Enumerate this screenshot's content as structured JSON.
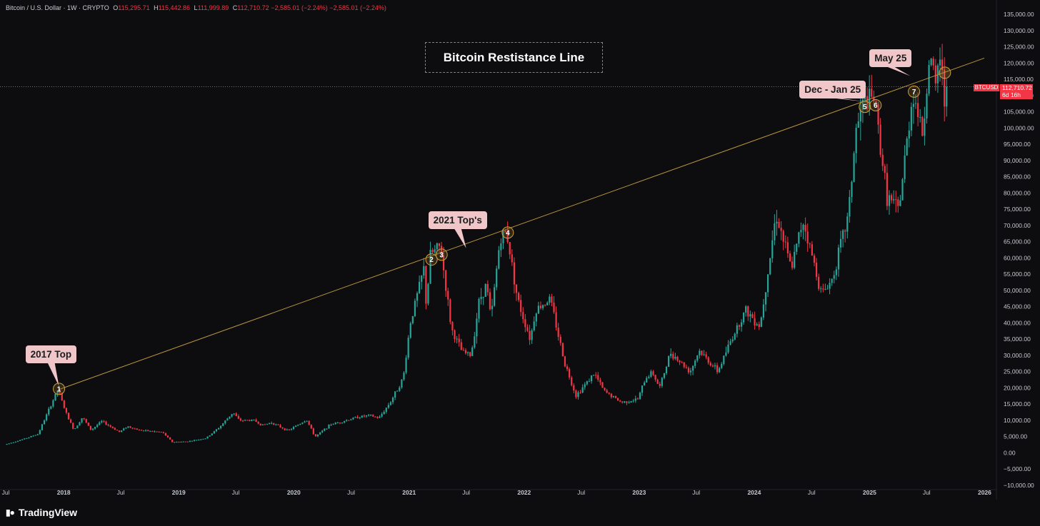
{
  "legend": {
    "symbol": "Bitcoin / U.S. Dollar · 1W · CRYPTO",
    "o_label": "O",
    "o": "115,295.71",
    "h_label": "H",
    "h": "115,442.86",
    "l_label": "L",
    "l": "111,999.89",
    "c_label": "C",
    "c": "112,710.72",
    "change": "−2,585.01 (−2.24%)",
    "change2": "−2,585.01 (−2.24%)"
  },
  "title": "Bitcoin Restistance Line",
  "price_tag": {
    "symbol": "BTCUSD",
    "price": "112,710.72",
    "countdown": "6d 16h"
  },
  "brand": "TradingView",
  "colors": {
    "up": "#26a69a",
    "down": "#f23645",
    "line": "#b8953c",
    "circle": "#d0a03c",
    "callout": "#f0c6c9",
    "current": "#f23645"
  },
  "chart_data": {
    "type": "candlestick",
    "title": "Bitcoin Restistance Line",
    "timeframe": "1W",
    "ylim": [
      -10000,
      135000
    ],
    "y_ticks": [
      135000,
      130000,
      125000,
      120000,
      115000,
      110000,
      105000,
      100000,
      95000,
      90000,
      85000,
      80000,
      75000,
      70000,
      65000,
      60000,
      55000,
      50000,
      45000,
      40000,
      35000,
      30000,
      25000,
      20000,
      15000,
      10000,
      5000,
      0,
      -5000,
      -10000
    ],
    "y_tick_labels": [
      "135,000.00",
      "130,000.00",
      "125,000.00",
      "120,000.00",
      "115,000.00",
      "110,000.00",
      "105,000.00",
      "100,000.00",
      "95,000.00",
      "90,000.00",
      "85,000.00",
      "80,000.00",
      "75,000.00",
      "70,000.00",
      "65,000.00",
      "60,000.00",
      "55,000.00",
      "50,000.00",
      "45,000.00",
      "40,000.00",
      "35,000.00",
      "30,000.00",
      "25,000.00",
      "20,000.00",
      "15,000.00",
      "10,000.00",
      "5,000.00",
      "0.00",
      "−5,000.00",
      "−10,000.00"
    ],
    "x_ticks": [
      {
        "label": "Jul",
        "date": "2017-07-01"
      },
      {
        "label": "2018",
        "date": "2018-01-01"
      },
      {
        "label": "Jul",
        "date": "2018-07-01"
      },
      {
        "label": "2019",
        "date": "2019-01-01"
      },
      {
        "label": "Jul",
        "date": "2019-07-01"
      },
      {
        "label": "2020",
        "date": "2020-01-01"
      },
      {
        "label": "Jul",
        "date": "2020-07-01"
      },
      {
        "label": "2021",
        "date": "2021-01-01"
      },
      {
        "label": "Jul",
        "date": "2021-07-01"
      },
      {
        "label": "2022",
        "date": "2022-01-01"
      },
      {
        "label": "Jul",
        "date": "2022-07-01"
      },
      {
        "label": "2023",
        "date": "2023-01-01"
      },
      {
        "label": "Jul",
        "date": "2023-07-01"
      },
      {
        "label": "2024",
        "date": "2024-01-01"
      },
      {
        "label": "Jul",
        "date": "2024-07-01"
      },
      {
        "label": "2025",
        "date": "2025-01-01"
      },
      {
        "label": "Jul",
        "date": "2025-07-01"
      },
      {
        "label": "2026",
        "date": "2026-01-01"
      }
    ],
    "x_range": [
      "2017-07-01",
      "2025-12-31"
    ],
    "price_path": [
      [
        "2017-07-01",
        2500
      ],
      [
        "2017-09-01",
        4300
      ],
      [
        "2017-10-15",
        5800
      ],
      [
        "2017-12-17",
        19500
      ],
      [
        "2018-01-15",
        11500
      ],
      [
        "2018-02-06",
        7000
      ],
      [
        "2018-03-05",
        11000
      ],
      [
        "2018-04-01",
        7000
      ],
      [
        "2018-05-05",
        9700
      ],
      [
        "2018-07-01",
        6400
      ],
      [
        "2018-07-25",
        8200
      ],
      [
        "2018-09-01",
        7000
      ],
      [
        "2018-11-14",
        6300
      ],
      [
        "2018-12-15",
        3300
      ],
      [
        "2019-02-01",
        3500
      ],
      [
        "2019-04-01",
        4500
      ],
      [
        "2019-05-15",
        8000
      ],
      [
        "2019-06-26",
        12500
      ],
      [
        "2019-07-15",
        10000
      ],
      [
        "2019-09-01",
        10000
      ],
      [
        "2019-09-25",
        8500
      ],
      [
        "2019-10-26",
        9300
      ],
      [
        "2019-12-17",
        6800
      ],
      [
        "2020-02-14",
        10200
      ],
      [
        "2020-03-12",
        4900
      ],
      [
        "2020-05-01",
        8800
      ],
      [
        "2020-06-01",
        9500
      ],
      [
        "2020-07-25",
        11000
      ],
      [
        "2020-09-01",
        11500
      ],
      [
        "2020-10-01",
        10700
      ],
      [
        "2020-11-05",
        15500
      ],
      [
        "2020-12-17",
        23000
      ],
      [
        "2021-01-08",
        40000
      ],
      [
        "2021-02-21",
        57000
      ],
      [
        "2021-02-28",
        45000
      ],
      [
        "2021-03-13",
        61000
      ],
      [
        "2021-04-14",
        63500
      ],
      [
        "2021-05-19",
        38000
      ],
      [
        "2021-06-22",
        31000
      ],
      [
        "2021-07-20",
        30000
      ],
      [
        "2021-08-15",
        47000
      ],
      [
        "2021-09-07",
        52000
      ],
      [
        "2021-09-21",
        41000
      ],
      [
        "2021-10-20",
        66000
      ],
      [
        "2021-11-10",
        68000
      ],
      [
        "2021-12-15",
        47000
      ],
      [
        "2022-01-24",
        35000
      ],
      [
        "2022-02-10",
        44000
      ],
      [
        "2022-03-28",
        47500
      ],
      [
        "2022-05-12",
        28000
      ],
      [
        "2022-06-18",
        17600
      ],
      [
        "2022-08-15",
        24500
      ],
      [
        "2022-09-15",
        19000
      ],
      [
        "2022-11-09",
        15500
      ],
      [
        "2022-12-31",
        16500
      ],
      [
        "2023-01-25",
        23000
      ],
      [
        "2023-02-15",
        25000
      ],
      [
        "2023-03-10",
        20000
      ],
      [
        "2023-04-14",
        31000
      ],
      [
        "2023-06-15",
        25000
      ],
      [
        "2023-07-14",
        31500
      ],
      [
        "2023-09-11",
        25000
      ],
      [
        "2023-10-24",
        35000
      ],
      [
        "2023-12-08",
        44000
      ],
      [
        "2024-01-23",
        39000
      ],
      [
        "2024-03-14",
        73700
      ],
      [
        "2024-05-01",
        56500
      ],
      [
        "2024-06-07",
        71900
      ],
      [
        "2024-08-05",
        49000
      ],
      [
        "2024-09-06",
        53000
      ],
      [
        "2024-10-29",
        73000
      ],
      [
        "2024-11-22",
        99000
      ],
      [
        "2024-12-17",
        108000
      ],
      [
        "2025-01-20",
        109000
      ],
      [
        "2025-02-28",
        79000
      ],
      [
        "2025-04-07",
        74500
      ],
      [
        "2025-05-22",
        111500
      ],
      [
        "2025-06-22",
        98000
      ],
      [
        "2025-07-14",
        123000
      ],
      [
        "2025-08-02",
        112000
      ],
      [
        "2025-08-14",
        124000
      ],
      [
        "2025-08-30",
        108000
      ],
      [
        "2025-09-05",
        112710
      ]
    ],
    "resistance_line": [
      [
        "2017-12-17",
        19500
      ],
      [
        "2025-12-31",
        121500
      ]
    ],
    "annotations": [
      {
        "label": "1",
        "date": "2017-12-17",
        "value": 19700
      },
      {
        "label": "2",
        "date": "2021-03-13",
        "value": 59500
      },
      {
        "label": "3",
        "date": "2021-04-14",
        "value": 61000
      },
      {
        "label": "4",
        "date": "2021-11-10",
        "value": 67800
      },
      {
        "label": "5",
        "date": "2024-12-17",
        "value": 106500
      },
      {
        "label": "6",
        "date": "2025-01-20",
        "value": 107000
      },
      {
        "label": "7",
        "date": "2025-05-22",
        "value": 111200
      },
      {
        "label": "",
        "date": "2025-08-28",
        "value": 117000
      }
    ],
    "callouts": [
      {
        "text": "2017 Top",
        "point": [
          "2017-12-17",
          20500
        ]
      },
      {
        "text": "2021 Top's",
        "point": [
          "2021-07-01",
          63000
        ]
      },
      {
        "text": "Dec - Jan 25",
        "point": [
          "2024-12-25",
          108000
        ]
      },
      {
        "text": "May 25",
        "point": [
          "2025-05-10",
          116000
        ]
      }
    ],
    "current_price": 112710.72
  }
}
